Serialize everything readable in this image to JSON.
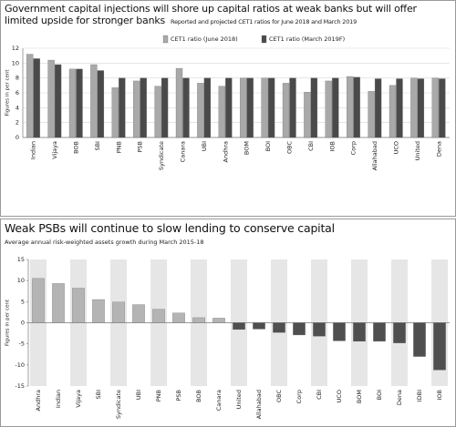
{
  "chart_data": [
    {
      "type": "bar",
      "title": "Government capital injections will shore up capital ratios at weak banks but will offer limited upside for stronger banks",
      "subtitle": "Reported and projected CET1 ratios for June 2018 and March 2019",
      "y_label": "Figures in per cent",
      "categories": [
        "Indian",
        "Vijaya",
        "BOB",
        "SBI",
        "PNB",
        "PSB",
        "Syndicate",
        "Canara",
        "UBI",
        "Andhra",
        "BOM",
        "BOI",
        "OBC",
        "CBI",
        "IOB",
        "Corp",
        "Allahabad",
        "UCO",
        "United",
        "Dena"
      ],
      "series": [
        {
          "name": "CET1 ratio (June 2018)",
          "color": "#a9a9a9",
          "values": [
            11.2,
            10.4,
            9.2,
            9.8,
            6.7,
            7.6,
            6.9,
            9.3,
            7.3,
            6.9,
            8.0,
            8.0,
            7.3,
            6.1,
            7.6,
            8.2,
            6.2,
            7.0,
            8.0,
            8.0
          ]
        },
        {
          "name": "CET1 ratio (March 2019F)",
          "color": "#4a4a4a",
          "values": [
            10.6,
            9.8,
            9.2,
            9.0,
            8.0,
            8.0,
            8.0,
            8.0,
            8.0,
            8.0,
            8.0,
            8.0,
            8.0,
            8.0,
            8.0,
            8.1,
            7.9,
            7.9,
            7.9,
            7.9
          ]
        }
      ],
      "ylim": [
        0,
        12
      ],
      "yticks": [
        0,
        2,
        4,
        6,
        8,
        10,
        12
      ],
      "grid": true
    },
    {
      "type": "bar",
      "title": "Weak PSBs will continue to slow lending to conserve capital",
      "subtitle": "Average annual risk-weighted assets growth during March 2015-18",
      "y_label": "Figures in per cent",
      "categories": [
        "Andhra",
        "Indian",
        "Vijaya",
        "SBI",
        "Syndicate",
        "UBI",
        "PNB",
        "PSB",
        "BOB",
        "Canara",
        "United",
        "Allahabad",
        "OBC",
        "Corp",
        "CBI",
        "UCO",
        "BOM",
        "BOI",
        "Dena",
        "IDBI",
        "IOB"
      ],
      "values": [
        10.5,
        9.3,
        8.2,
        5.5,
        4.9,
        4.3,
        3.2,
        2.3,
        1.2,
        1.1,
        -1.6,
        -1.5,
        -2.3,
        -2.9,
        -3.2,
        -4.3,
        -4.4,
        -4.4,
        -4.8,
        -8.0,
        -11.2
      ],
      "color": "#b4b4b4",
      "negative_color": "#4f4f4f",
      "ylim": [
        -15,
        15
      ],
      "yticks": [
        15,
        10,
        5,
        0,
        -5,
        -10,
        -15
      ],
      "grid": false
    }
  ]
}
